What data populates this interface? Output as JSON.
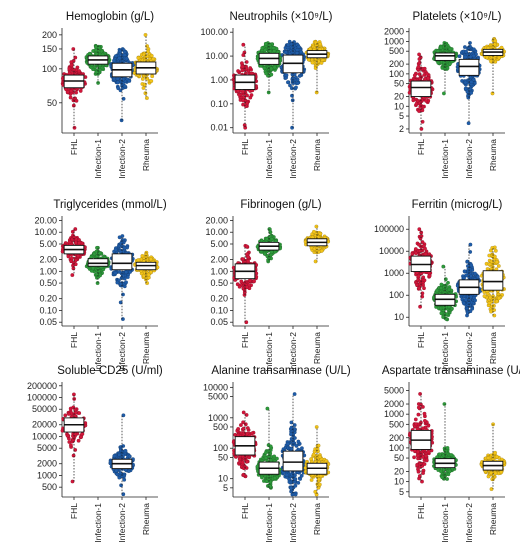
{
  "figure": {
    "width": 520,
    "height": 547
  },
  "colors": {
    "FHL": "#d1163a",
    "Infection-1": "#2e9a3b",
    "Infection-2": "#1f5ca8",
    "Rheuma": "#f2c318"
  },
  "categories": [
    "FHL",
    "Infection-1",
    "Infection-2",
    "Rheuma"
  ],
  "chart_data": [
    {
      "type": "scatter",
      "subtype": "box-and-beeswarm",
      "title": "Hemoglobin (g/L)",
      "scale": "log",
      "ylim": [
        27,
        230
      ],
      "yticks": [
        50,
        100,
        150,
        200
      ],
      "ytick_labels": [
        "50",
        "100",
        "150",
        "200"
      ],
      "series": [
        {
          "name": "FHL",
          "min": 30,
          "q1": 68,
          "median": 78,
          "q3": 88,
          "max": 150,
          "n": 140,
          "missing": false
        },
        {
          "name": "Infection-1",
          "min": 75,
          "q1": 110,
          "median": 120,
          "q3": 130,
          "max": 160,
          "n": 170,
          "missing": false
        },
        {
          "name": "Infection-2",
          "min": 35,
          "q1": 85,
          "median": 98,
          "q3": 112,
          "max": 150,
          "n": 190,
          "missing": false
        },
        {
          "name": "Rheuma",
          "min": 55,
          "q1": 90,
          "median": 102,
          "q3": 115,
          "max": 200,
          "n": 130,
          "missing": false
        }
      ]
    },
    {
      "type": "scatter",
      "subtype": "box-and-beeswarm",
      "title": "Neutrophils (×10⁹/L)",
      "scale": "log",
      "ylim": [
        0.006,
        150
      ],
      "yticks": [
        0.01,
        0.1,
        1,
        10,
        100
      ],
      "ytick_labels": [
        "0.01",
        "0.10",
        "1.00",
        "10.00",
        "100.00"
      ],
      "series": [
        {
          "name": "FHL",
          "min": 0.01,
          "q1": 0.4,
          "median": 0.8,
          "q3": 1.6,
          "max": 30,
          "n": 140,
          "missing": false
        },
        {
          "name": "Infection-1",
          "min": 0.3,
          "q1": 4.5,
          "median": 8,
          "q3": 13,
          "max": 35,
          "n": 170,
          "missing": false
        },
        {
          "name": "Infection-2",
          "min": 0.01,
          "q1": 2,
          "median": 5,
          "q3": 11,
          "max": 40,
          "n": 190,
          "missing": false
        },
        {
          "name": "Rheuma",
          "min": 0.3,
          "q1": 8.5,
          "median": 12,
          "q3": 17,
          "max": 40,
          "n": 130,
          "missing": false
        }
      ]
    },
    {
      "type": "scatter",
      "subtype": "box-and-beeswarm",
      "title": "Platelets (×10⁹/L)",
      "scale": "log",
      "ylim": [
        1.5,
        2600
      ],
      "yticks": [
        2,
        5,
        10,
        20,
        50,
        100,
        200,
        500,
        1000,
        2000
      ],
      "ytick_labels": [
        "2",
        "5",
        "10",
        "20",
        "50",
        "100",
        "200",
        "500",
        "1000",
        "2000"
      ],
      "series": [
        {
          "name": "FHL",
          "min": 2,
          "q1": 20,
          "median": 38,
          "q3": 60,
          "max": 400,
          "n": 140,
          "missing": false
        },
        {
          "name": "Infection-1",
          "min": 25,
          "q1": 260,
          "median": 360,
          "q3": 440,
          "max": 900,
          "n": 170,
          "missing": false
        },
        {
          "name": "Infection-2",
          "min": 3,
          "q1": 90,
          "median": 170,
          "q3": 280,
          "max": 900,
          "n": 190,
          "missing": false
        },
        {
          "name": "Rheuma",
          "min": 25,
          "q1": 370,
          "median": 470,
          "q3": 570,
          "max": 1200,
          "n": 130,
          "missing": false
        }
      ]
    },
    {
      "type": "scatter",
      "subtype": "box-and-beeswarm",
      "title": "Triglycerides (mmol/L)",
      "scale": "log",
      "ylim": [
        0.04,
        26
      ],
      "yticks": [
        0.05,
        0.1,
        0.2,
        0.5,
        1,
        2,
        5,
        10,
        20
      ],
      "ytick_labels": [
        "0.05",
        "0.10",
        "0.20",
        "0.50",
        "1.00",
        "2.00",
        "5.00",
        "10.00",
        "20.00"
      ],
      "series": [
        {
          "name": "FHL",
          "min": 0.8,
          "q1": 2.8,
          "median": 3.6,
          "q3": 4.6,
          "max": 12,
          "n": 130,
          "missing": false
        },
        {
          "name": "Infection-1",
          "min": 0.5,
          "q1": 1.35,
          "median": 1.6,
          "q3": 2.1,
          "max": 4,
          "n": 150,
          "missing": false
        },
        {
          "name": "Infection-2",
          "min": 0.06,
          "q1": 1.1,
          "median": 1.6,
          "q3": 2.8,
          "max": 8,
          "n": 150,
          "missing": false
        },
        {
          "name": "Rheuma",
          "min": 0.5,
          "q1": 1.1,
          "median": 1.4,
          "q3": 1.7,
          "max": 3,
          "n": 110,
          "missing": false
        }
      ]
    },
    {
      "type": "scatter",
      "subtype": "box-and-beeswarm",
      "title": "Fibrinogen (g/L)",
      "scale": "log",
      "ylim": [
        0.04,
        26
      ],
      "yticks": [
        0.05,
        0.1,
        0.2,
        0.5,
        1,
        2,
        5,
        10,
        20
      ],
      "ytick_labels": [
        "0.05",
        "0.10",
        "0.20",
        "0.50",
        "1.00",
        "2.00",
        "5.00",
        "10.00",
        "20.00"
      ],
      "series": [
        {
          "name": "FHL",
          "min": 0.05,
          "q1": 0.65,
          "median": 1.0,
          "q3": 1.55,
          "max": 4.5,
          "n": 140,
          "missing": false
        },
        {
          "name": "Infection-1",
          "min": 1.8,
          "q1": 3.5,
          "median": 4.4,
          "q3": 5.5,
          "max": 12,
          "n": 120,
          "missing": false
        },
        {
          "name": "Infection-2",
          "missing": true
        },
        {
          "name": "Rheuma",
          "min": 1.8,
          "q1": 4.5,
          "median": 5.5,
          "q3": 6.8,
          "max": 14,
          "n": 110,
          "missing": false
        }
      ]
    },
    {
      "type": "scatter",
      "subtype": "box-and-beeswarm",
      "title": "Ferritin (microg/L)",
      "scale": "log",
      "ylim": [
        4,
        400000
      ],
      "yticks": [
        10,
        100,
        1000,
        10000,
        100000
      ],
      "ytick_labels": [
        "10",
        "100",
        "1000",
        "10000",
        "100000"
      ],
      "series": [
        {
          "name": "FHL",
          "min": 30,
          "q1": 1200,
          "median": 2500,
          "q3": 6000,
          "max": 100000,
          "n": 140,
          "missing": false
        },
        {
          "name": "Infection-1",
          "min": 8,
          "q1": 35,
          "median": 65,
          "q3": 110,
          "max": 2000,
          "n": 160,
          "missing": false
        },
        {
          "name": "Infection-2",
          "min": 12,
          "q1": 110,
          "median": 230,
          "q3": 500,
          "max": 20000,
          "n": 190,
          "missing": false
        },
        {
          "name": "Rheuma",
          "min": 12,
          "q1": 170,
          "median": 420,
          "q3": 1300,
          "max": 15000,
          "n": 140,
          "missing": false
        }
      ]
    },
    {
      "type": "scatter",
      "subtype": "box-and-beeswarm",
      "title": "Soluble CD25 (U/ml)",
      "scale": "log",
      "ylim": [
        280,
        250000
      ],
      "yticks": [
        500,
        1000,
        2000,
        5000,
        10000,
        20000,
        50000,
        100000,
        200000
      ],
      "ytick_labels": [
        "500",
        "1000",
        "2000",
        "5000",
        "10000",
        "20000",
        "50000",
        "100000",
        "200000"
      ],
      "series": [
        {
          "name": "FHL",
          "min": 700,
          "q1": 13000,
          "median": 20000,
          "q3": 30000,
          "max": 120000,
          "n": 90,
          "missing": false
        },
        {
          "name": "Infection-1",
          "missing": true
        },
        {
          "name": "Infection-2",
          "min": 330,
          "q1": 1500,
          "median": 2000,
          "q3": 2600,
          "max": 35000,
          "n": 180,
          "missing": false
        },
        {
          "name": "Rheuma",
          "missing": true
        }
      ]
    },
    {
      "type": "scatter",
      "subtype": "box-and-beeswarm",
      "title": "Alanine transaminase (U/L)",
      "scale": "log",
      "ylim": [
        2.5,
        15000
      ],
      "yticks": [
        5,
        10,
        50,
        100,
        500,
        1000,
        5000,
        10000
      ],
      "ytick_labels": [
        "5",
        "10",
        "50",
        "100",
        "500",
        "1000",
        "5000",
        "10000"
      ],
      "series": [
        {
          "name": "FHL",
          "min": 12,
          "q1": 60,
          "median": 120,
          "q3": 240,
          "max": 1500,
          "n": 140,
          "missing": false
        },
        {
          "name": "Infection-1",
          "min": 5,
          "q1": 14,
          "median": 22,
          "q3": 35,
          "max": 2000,
          "n": 170,
          "missing": false
        },
        {
          "name": "Infection-2",
          "min": 3,
          "q1": 18,
          "median": 35,
          "q3": 80,
          "max": 6000,
          "n": 190,
          "missing": false
        },
        {
          "name": "Rheuma",
          "min": 3,
          "q1": 14,
          "median": 22,
          "q3": 32,
          "max": 500,
          "n": 130,
          "missing": false
        }
      ]
    },
    {
      "type": "scatter",
      "subtype": "box-and-beeswarm",
      "title": "Aspartate transaminase (U/L)",
      "scale": "log",
      "ylim": [
        3.5,
        9000
      ],
      "yticks": [
        5,
        10,
        20,
        50,
        100,
        200,
        500,
        1000,
        2000,
        5000
      ],
      "ytick_labels": [
        "5",
        "10",
        "20",
        "50",
        "100",
        "200",
        "500",
        "1000",
        "2000",
        "5000"
      ],
      "series": [
        {
          "name": "FHL",
          "min": 10,
          "q1": 90,
          "median": 170,
          "q3": 330,
          "max": 4000,
          "n": 140,
          "missing": false
        },
        {
          "name": "Infection-1",
          "min": 12,
          "q1": 26,
          "median": 35,
          "q3": 48,
          "max": 2000,
          "n": 150,
          "missing": false
        },
        {
          "name": "Infection-2",
          "missing": true
        },
        {
          "name": "Rheuma",
          "min": 6,
          "q1": 22,
          "median": 30,
          "q3": 40,
          "max": 500,
          "n": 110,
          "missing": false
        }
      ]
    }
  ]
}
